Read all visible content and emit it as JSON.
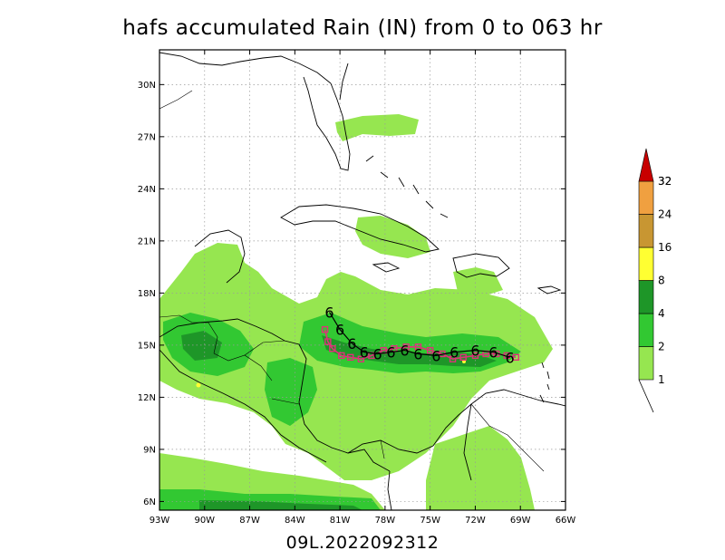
{
  "title": "hafs accumulated Rain (IN) from 0 to 063 hr",
  "subtitle": "09L.2022092312",
  "map": {
    "lon_range": [
      -93,
      -66
    ],
    "lat_range": [
      5.5,
      32
    ],
    "lat_ticks": [
      {
        "value": 30,
        "label": "30N"
      },
      {
        "value": 27,
        "label": "27N"
      },
      {
        "value": 24,
        "label": "24N"
      },
      {
        "value": 21,
        "label": "21N"
      },
      {
        "value": 18,
        "label": "18N"
      },
      {
        "value": 15,
        "label": "15N"
      },
      {
        "value": 12,
        "label": "12N"
      },
      {
        "value": 9,
        "label": "9N"
      },
      {
        "value": 6,
        "label": "6N"
      }
    ],
    "lon_ticks": [
      {
        "value": -93,
        "label": "93W"
      },
      {
        "value": -90,
        "label": "90W"
      },
      {
        "value": -87,
        "label": "87W"
      },
      {
        "value": -84,
        "label": "84W"
      },
      {
        "value": -81,
        "label": "81W"
      },
      {
        "value": -78,
        "label": "78W"
      },
      {
        "value": -75,
        "label": "75W"
      },
      {
        "value": -72,
        "label": "72W"
      },
      {
        "value": -69,
        "label": "69W"
      },
      {
        "value": -66,
        "label": "66W"
      }
    ],
    "grid": true
  },
  "legend": {
    "levels": [
      {
        "label": "1",
        "color": "#96e650"
      },
      {
        "label": "2",
        "color": "#32c832"
      },
      {
        "label": "4",
        "color": "#1e9628"
      },
      {
        "label": "8",
        "color": "#ffff32"
      },
      {
        "label": "16",
        "color": "#c89632"
      },
      {
        "label": "24",
        "color": "#f0a040"
      },
      {
        "label": "32",
        "color": "#c80000"
      }
    ]
  },
  "track": {
    "marker_symbol": "6",
    "points": [
      {
        "lat": 16.9,
        "lon": -81.7
      },
      {
        "lat": 15.9,
        "lon": -81.0
      },
      {
        "lat": 15.1,
        "lon": -80.2
      },
      {
        "lat": 14.6,
        "lon": -79.4
      },
      {
        "lat": 14.5,
        "lon": -78.5
      },
      {
        "lat": 14.6,
        "lon": -77.6
      },
      {
        "lat": 14.7,
        "lon": -76.7
      },
      {
        "lat": 14.5,
        "lon": -75.8
      },
      {
        "lat": 14.4,
        "lon": -74.6
      },
      {
        "lat": 14.6,
        "lon": -73.4
      },
      {
        "lat": 14.7,
        "lon": -72.0
      },
      {
        "lat": 14.6,
        "lon": -70.8
      },
      {
        "lat": 14.3,
        "lon": -69.7
      }
    ]
  },
  "model_track": {
    "points": [
      {
        "lat": 15.9,
        "lon": -82.0
      },
      {
        "lat": 15.2,
        "lon": -81.8
      },
      {
        "lat": 14.8,
        "lon": -81.5
      },
      {
        "lat": 14.4,
        "lon": -80.9
      },
      {
        "lat": 14.3,
        "lon": -80.3
      },
      {
        "lat": 14.2,
        "lon": -79.6
      },
      {
        "lat": 14.4,
        "lon": -78.9
      },
      {
        "lat": 14.7,
        "lon": -78.1
      },
      {
        "lat": 14.8,
        "lon": -77.4
      },
      {
        "lat": 14.9,
        "lon": -76.6
      },
      {
        "lat": 14.9,
        "lon": -75.8
      },
      {
        "lat": 14.7,
        "lon": -75.0
      },
      {
        "lat": 14.5,
        "lon": -74.2
      },
      {
        "lat": 14.2,
        "lon": -73.5
      },
      {
        "lat": 14.3,
        "lon": -72.8
      },
      {
        "lat": 14.4,
        "lon": -72.0
      },
      {
        "lat": 14.5,
        "lon": -71.3
      },
      {
        "lat": 14.5,
        "lon": -70.6
      },
      {
        "lat": 14.4,
        "lon": -69.9
      },
      {
        "lat": 14.3,
        "lon": -69.3
      }
    ]
  },
  "colors": {
    "track_line": "#000000",
    "model_track": "#e0307a",
    "coast": "#000000",
    "grid": "#9a9a9a"
  }
}
